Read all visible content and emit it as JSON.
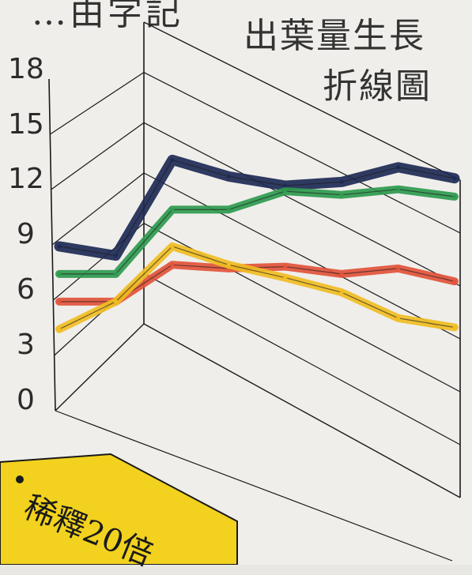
{
  "page": {
    "top_text": "…由字記",
    "title_line1": "出葉量生長",
    "title_line2": "折線圖",
    "tag_label": "稀釋20倍"
  },
  "chart_data": {
    "type": "line",
    "title": "出葉量生長折線圖",
    "y_ticks": [
      "18",
      "15",
      "12",
      "9",
      "6",
      "3",
      "0"
    ],
    "ylim": [
      0,
      18
    ],
    "x": [
      1,
      2,
      3,
      4,
      5,
      6,
      7,
      8
    ],
    "grid": true,
    "series": [
      {
        "color": "#1e2a55",
        "values": [
          8.5,
          8.0,
          13.2,
          12.3,
          11.8,
          12.0,
          12.8,
          12.2
        ]
      },
      {
        "color": "#2e9a4e",
        "values": [
          7.0,
          7.0,
          10.5,
          10.5,
          11.5,
          11.3,
          11.6,
          11.2
        ]
      },
      {
        "color": "#e2533a",
        "values": [
          5.5,
          5.5,
          7.5,
          7.3,
          7.4,
          7.0,
          7.3,
          6.6
        ]
      },
      {
        "color": "#f0bd22",
        "values": [
          4.0,
          5.5,
          8.5,
          7.5,
          6.8,
          6.0,
          4.6,
          4.1
        ]
      }
    ],
    "colors": {
      "ink": "#1a1a1a",
      "tag": "#f2d21e"
    }
  }
}
